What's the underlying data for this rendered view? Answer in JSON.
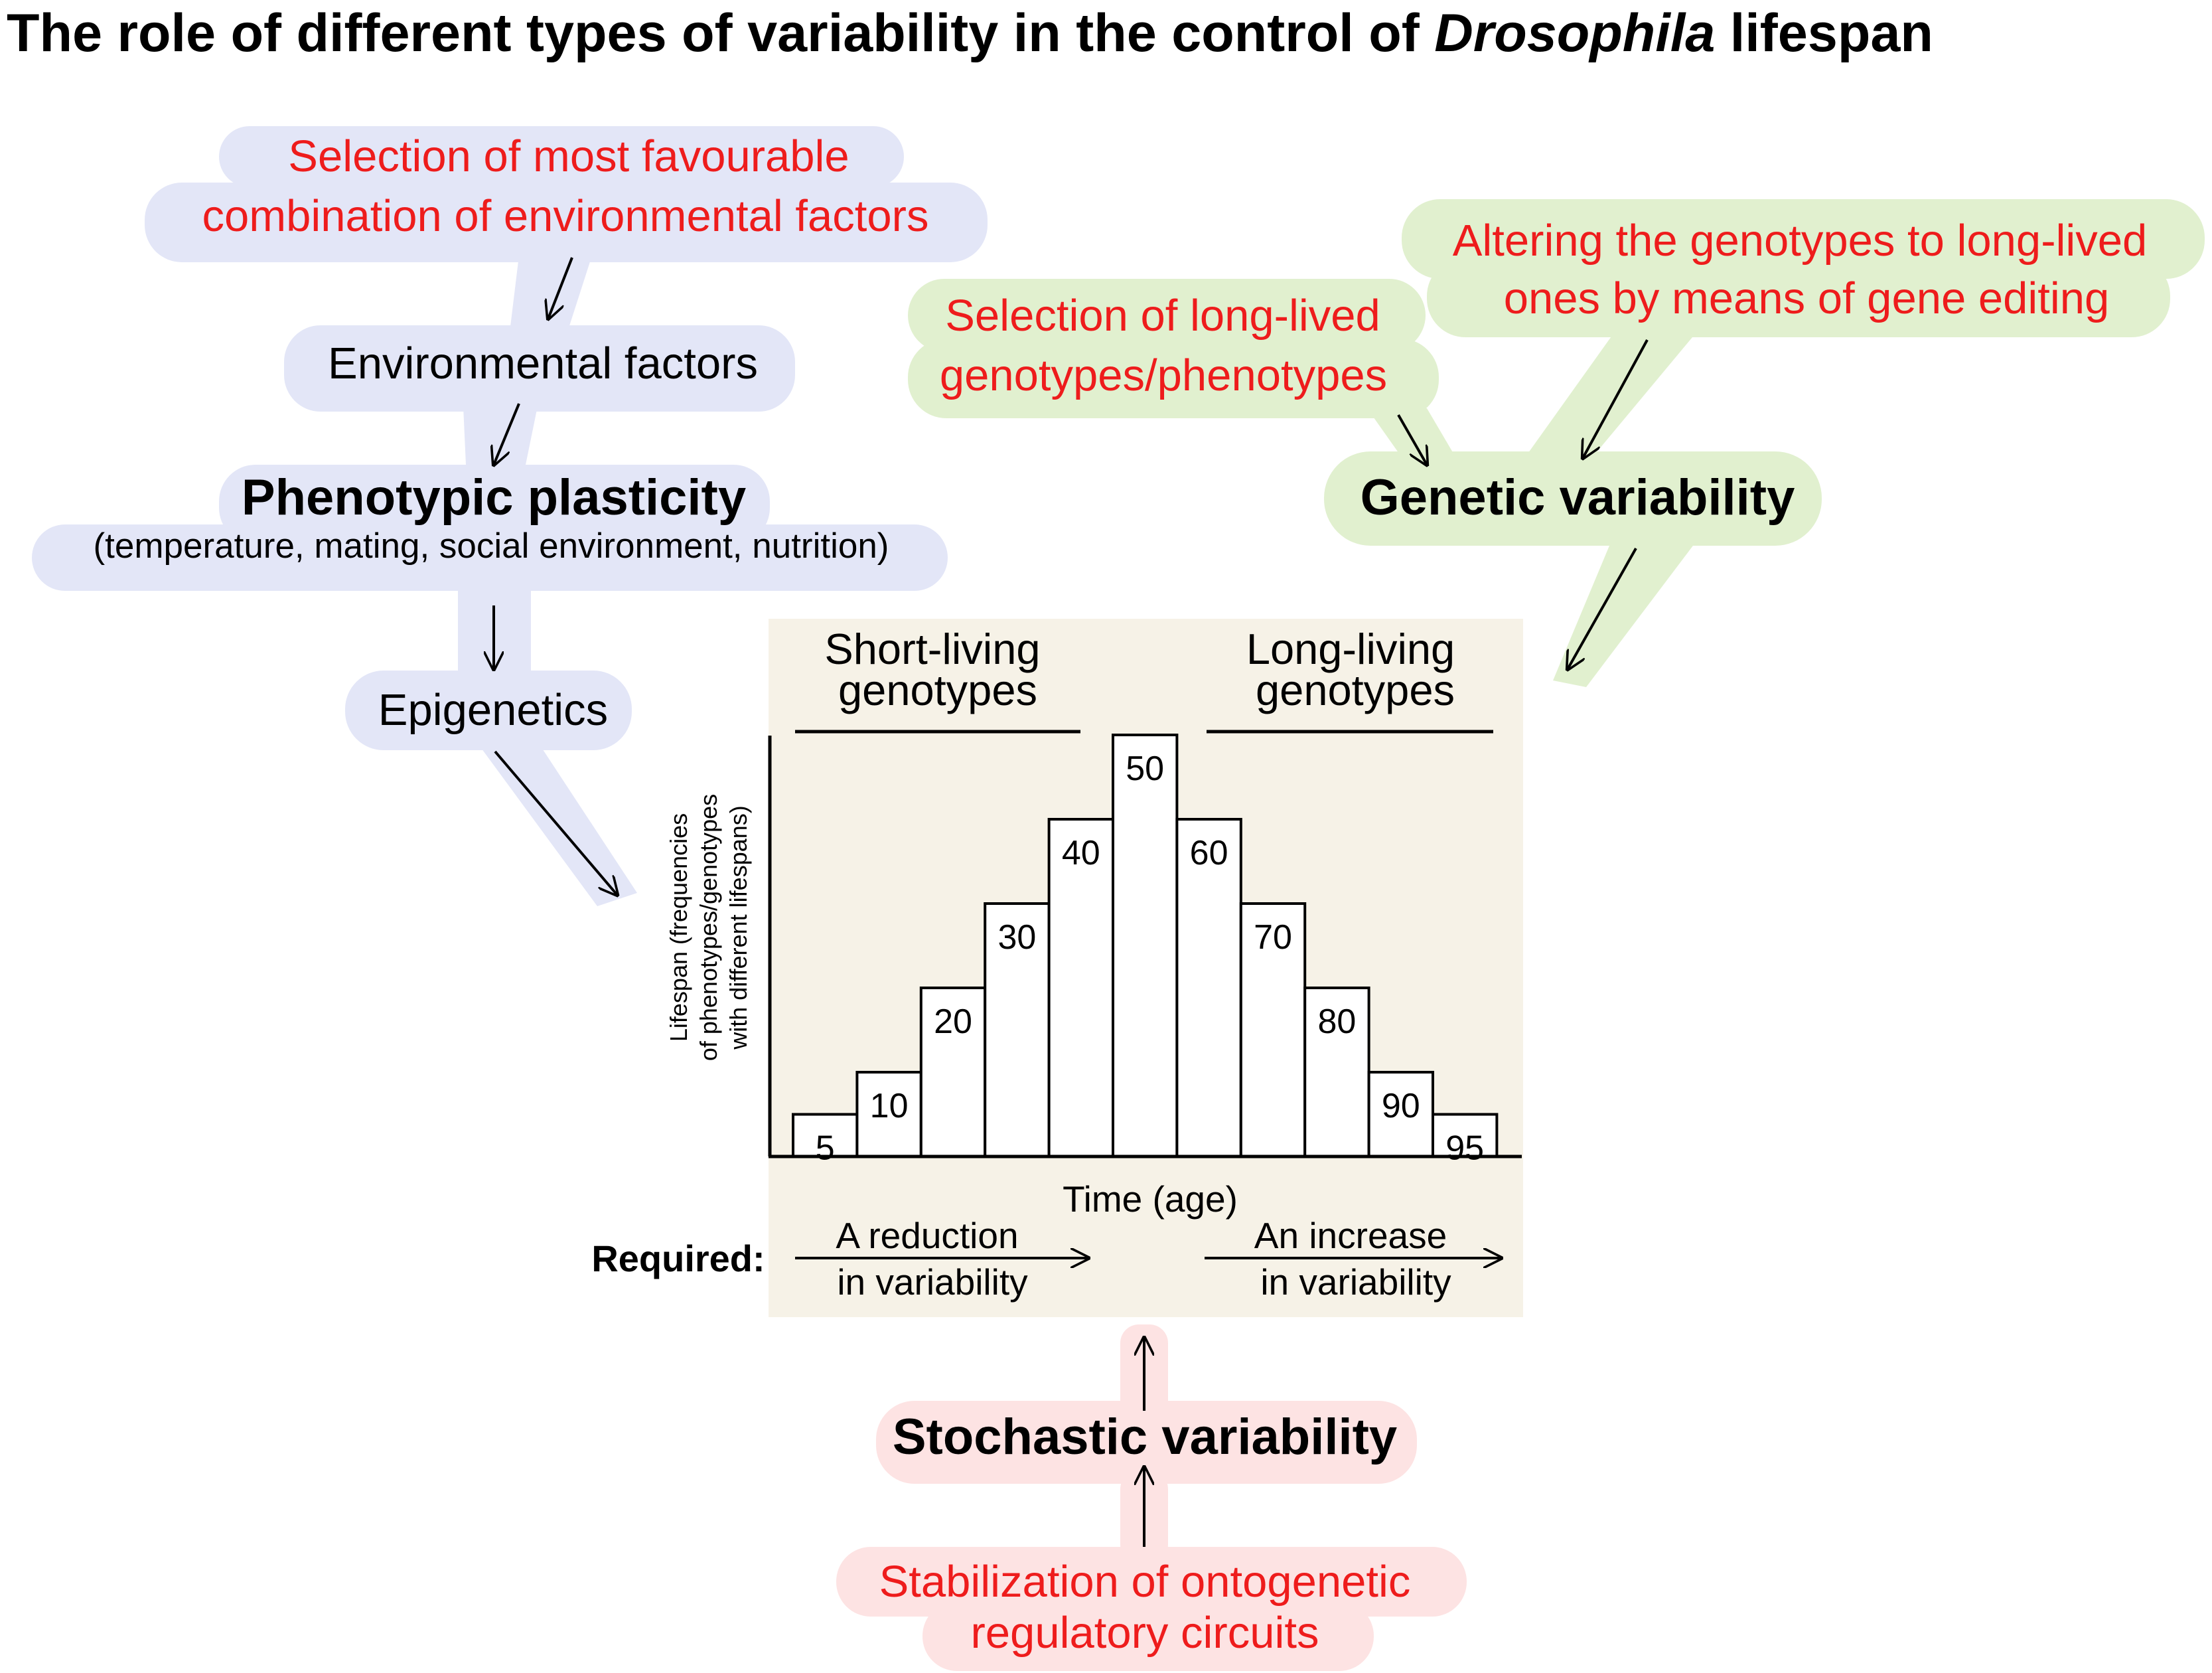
{
  "title": {
    "before": "The role of different types of variability in the control of",
    "italic": "Drosophila",
    "after": "lifespan"
  },
  "colors": {
    "blue_region": "#e3e6f7",
    "green_region": "#e1f0cf",
    "red_region": "#fde3e3",
    "chart_background": "#f6f2e7",
    "red_text": "#ee1c1c",
    "black_text": "#000000"
  },
  "left_branch": {
    "selection_env": [
      "Selection of most favourable",
      "combination of environmental factors"
    ],
    "environmental_factors": "Environmental factors",
    "phenotypic_plasticity": "Phenotypic plasticity",
    "plasticity_detail": "(temperature, mating, social environment, nutrition)",
    "epigenetics": "Epigenetics"
  },
  "right_branch": {
    "selection_genotypes": [
      "Selection of long-lived",
      "genotypes/phenotypes"
    ],
    "gene_editing": [
      "Altering the genotypes to long-lived",
      "ones by means of gene editing"
    ],
    "genetic_variability": "Genetic variability"
  },
  "bottom_branch": {
    "stochastic_variability": "Stochastic variability",
    "stabilization": [
      "Stabilization of ontogenetic",
      "regulatory circuits"
    ]
  },
  "chart": {
    "short_living": [
      "Short-living",
      "genotypes"
    ],
    "long_living": [
      "Long-living",
      "genotypes"
    ],
    "ylabel": [
      "Lifespan (frequencies",
      "of phenotypes/genotypes",
      "with different lifespans)"
    ],
    "xlabel": "Time (age)",
    "required": "Required:",
    "reduction": [
      "A reduction",
      "in variability"
    ],
    "increase": [
      "An increase",
      "in variability"
    ]
  },
  "chart_data": {
    "type": "bar",
    "categories": [
      "5",
      "10",
      "20",
      "30",
      "40",
      "50",
      "60",
      "70",
      "80",
      "90",
      "95"
    ],
    "values": [
      5,
      10,
      20,
      30,
      40,
      50,
      40,
      30,
      20,
      10,
      5
    ],
    "xlabel": "Time (age)",
    "ylabel": "Lifespan (frequencies of phenotypes/genotypes with different lifespans)",
    "grid": false
  }
}
